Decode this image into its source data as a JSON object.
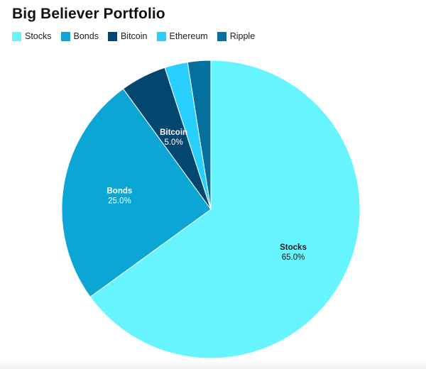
{
  "chart_data": {
    "type": "pie",
    "title": "Big Believer Portfolio",
    "legend_position": "top-left",
    "slices": [
      {
        "name": "Stocks",
        "value": 65.0,
        "label": "Stocks",
        "pct_label": "65.0%",
        "color": "#66F5FF",
        "label_color": "#1a1a1a",
        "show_label": true
      },
      {
        "name": "Bonds",
        "value": 25.0,
        "label": "Bonds",
        "pct_label": "25.0%",
        "color": "#0BA5D6",
        "label_color": "#ffffff",
        "show_label": true
      },
      {
        "name": "Bitcoin",
        "value": 5.0,
        "label": "Bitcoin",
        "pct_label": "5.0%",
        "color": "#03466E",
        "label_color": "#ffffff",
        "show_label": true
      },
      {
        "name": "Ethereum",
        "value": 2.5,
        "label": "Ethereum",
        "pct_label": "2.5%",
        "color": "#29D0FF",
        "label_color": "#ffffff",
        "show_label": false
      },
      {
        "name": "Ripple",
        "value": 2.5,
        "label": "Ripple",
        "pct_label": "2.5%",
        "color": "#05709E",
        "label_color": "#ffffff",
        "show_label": false
      }
    ]
  }
}
